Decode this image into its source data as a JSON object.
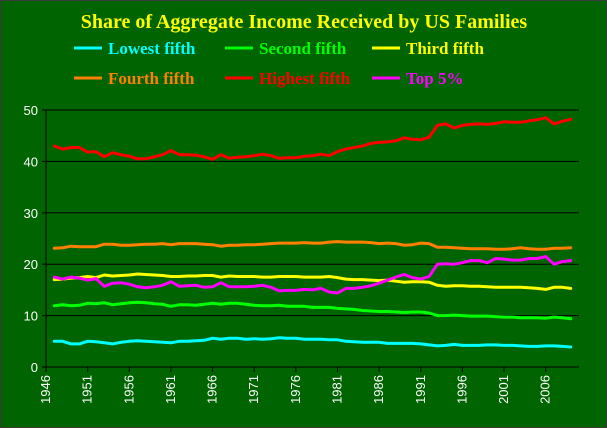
{
  "chart_data": {
    "type": "line",
    "title": "Share of Aggregate Income Received by US Families",
    "xlabel": "",
    "ylabel": "",
    "xlim": [
      1946,
      2010
    ],
    "ylim": [
      0,
      50
    ],
    "x_ticks": [
      "1946",
      "1951",
      "1956",
      "1961",
      "1966",
      "1971",
      "1976",
      "1981",
      "1986",
      "1991",
      "1996",
      "2001",
      "2006"
    ],
    "y_ticks": [
      "0",
      "10",
      "20",
      "30",
      "40",
      "50"
    ],
    "grid": true,
    "legend_position": "top",
    "colors": {
      "background": "#006400",
      "title": "#ffff00",
      "axis": "#000000",
      "grid": "#000000",
      "tick_text": "#ffffff"
    },
    "series": [
      {
        "name": "Lowest fifth",
        "color": "#00ffff",
        "x": [
          1947,
          1948,
          1949,
          1950,
          1951,
          1952,
          1953,
          1954,
          1955,
          1956,
          1957,
          1958,
          1959,
          1960,
          1961,
          1962,
          1963,
          1964,
          1965,
          1966,
          1967,
          1968,
          1969,
          1970,
          1971,
          1972,
          1973,
          1974,
          1975,
          1976,
          1977,
          1978,
          1979,
          1980,
          1981,
          1982,
          1983,
          1984,
          1985,
          1986,
          1987,
          1988,
          1989,
          1990,
          1991,
          1992,
          1993,
          1994,
          1995,
          1996,
          1997,
          1998,
          1999,
          2000,
          2001,
          2002,
          2003,
          2004,
          2005,
          2006,
          2007,
          2008,
          2009
        ],
        "y": [
          5.0,
          5.0,
          4.5,
          4.5,
          5.0,
          4.9,
          4.7,
          4.5,
          4.8,
          5.0,
          5.1,
          5.0,
          4.9,
          4.8,
          4.7,
          5.0,
          5.0,
          5.1,
          5.2,
          5.6,
          5.4,
          5.6,
          5.6,
          5.4,
          5.5,
          5.4,
          5.5,
          5.7,
          5.6,
          5.6,
          5.4,
          5.4,
          5.4,
          5.3,
          5.3,
          5.0,
          4.9,
          4.8,
          4.8,
          4.8,
          4.6,
          4.6,
          4.6,
          4.6,
          4.5,
          4.3,
          4.1,
          4.2,
          4.4,
          4.2,
          4.2,
          4.2,
          4.3,
          4.3,
          4.2,
          4.2,
          4.1,
          4.0,
          4.0,
          4.1,
          4.1,
          4.0,
          3.9
        ]
      },
      {
        "name": "Second fifth",
        "color": "#00ff00",
        "x": [
          1947,
          1948,
          1949,
          1950,
          1951,
          1952,
          1953,
          1954,
          1955,
          1956,
          1957,
          1958,
          1959,
          1960,
          1961,
          1962,
          1963,
          1964,
          1965,
          1966,
          1967,
          1968,
          1969,
          1970,
          1971,
          1972,
          1973,
          1974,
          1975,
          1976,
          1977,
          1978,
          1979,
          1980,
          1981,
          1982,
          1983,
          1984,
          1985,
          1986,
          1987,
          1988,
          1989,
          1990,
          1991,
          1992,
          1993,
          1994,
          1995,
          1996,
          1997,
          1998,
          1999,
          2000,
          2001,
          2002,
          2003,
          2004,
          2005,
          2006,
          2007,
          2008,
          2009
        ],
        "y": [
          11.9,
          12.1,
          11.9,
          12.0,
          12.4,
          12.3,
          12.5,
          12.1,
          12.3,
          12.5,
          12.6,
          12.5,
          12.3,
          12.2,
          11.8,
          12.1,
          12.1,
          12.0,
          12.2,
          12.4,
          12.2,
          12.4,
          12.4,
          12.2,
          12.0,
          11.9,
          11.9,
          12.0,
          11.8,
          11.8,
          11.8,
          11.6,
          11.6,
          11.6,
          11.4,
          11.3,
          11.2,
          11.0,
          10.9,
          10.8,
          10.8,
          10.7,
          10.6,
          10.7,
          10.7,
          10.5,
          10.0,
          10.0,
          10.1,
          10.0,
          9.9,
          9.9,
          9.9,
          9.8,
          9.7,
          9.7,
          9.6,
          9.6,
          9.6,
          9.5,
          9.7,
          9.6,
          9.4
        ]
      },
      {
        "name": "Third fifth",
        "color": "#ffff00",
        "x": [
          1947,
          1948,
          1949,
          1950,
          1951,
          1952,
          1953,
          1954,
          1955,
          1956,
          1957,
          1958,
          1959,
          1960,
          1961,
          1962,
          1963,
          1964,
          1965,
          1966,
          1967,
          1968,
          1969,
          1970,
          1971,
          1972,
          1973,
          1974,
          1975,
          1976,
          1977,
          1978,
          1979,
          1980,
          1981,
          1982,
          1983,
          1984,
          1985,
          1986,
          1987,
          1988,
          1989,
          1990,
          1991,
          1992,
          1993,
          1994,
          1995,
          1996,
          1997,
          1998,
          1999,
          2000,
          2001,
          2002,
          2003,
          2004,
          2005,
          2006,
          2007,
          2008,
          2009
        ],
        "y": [
          17.0,
          17.1,
          17.3,
          17.4,
          17.6,
          17.4,
          17.9,
          17.7,
          17.8,
          17.9,
          18.1,
          18.0,
          17.9,
          17.8,
          17.6,
          17.6,
          17.7,
          17.7,
          17.8,
          17.8,
          17.5,
          17.7,
          17.6,
          17.6,
          17.6,
          17.5,
          17.5,
          17.6,
          17.6,
          17.6,
          17.5,
          17.5,
          17.5,
          17.6,
          17.4,
          17.1,
          17.0,
          17.0,
          16.9,
          16.8,
          16.9,
          16.7,
          16.5,
          16.6,
          16.6,
          16.5,
          15.9,
          15.7,
          15.8,
          15.8,
          15.7,
          15.7,
          15.6,
          15.5,
          15.5,
          15.5,
          15.5,
          15.4,
          15.3,
          15.1,
          15.5,
          15.5,
          15.3
        ]
      },
      {
        "name": "Fourth fifth",
        "color": "#ff8000",
        "x": [
          1947,
          1948,
          1949,
          1950,
          1951,
          1952,
          1953,
          1954,
          1955,
          1956,
          1957,
          1958,
          1959,
          1960,
          1961,
          1962,
          1963,
          1964,
          1965,
          1966,
          1967,
          1968,
          1969,
          1970,
          1971,
          1972,
          1973,
          1974,
          1975,
          1976,
          1977,
          1978,
          1979,
          1980,
          1981,
          1982,
          1983,
          1984,
          1985,
          1986,
          1987,
          1988,
          1989,
          1990,
          1991,
          1992,
          1993,
          1994,
          1995,
          1996,
          1997,
          1998,
          1999,
          2000,
          2001,
          2002,
          2003,
          2004,
          2005,
          2006,
          2007,
          2008,
          2009
        ],
        "y": [
          23.1,
          23.2,
          23.5,
          23.4,
          23.4,
          23.4,
          23.9,
          23.9,
          23.7,
          23.7,
          23.8,
          23.9,
          23.9,
          24.0,
          23.8,
          24.0,
          24.0,
          24.0,
          23.9,
          23.8,
          23.5,
          23.7,
          23.7,
          23.8,
          23.8,
          23.9,
          24.0,
          24.1,
          24.1,
          24.1,
          24.2,
          24.1,
          24.1,
          24.3,
          24.4,
          24.3,
          24.3,
          24.3,
          24.2,
          24.0,
          24.1,
          24.0,
          23.7,
          23.8,
          24.1,
          24.0,
          23.3,
          23.3,
          23.2,
          23.1,
          23.0,
          23.0,
          23.0,
          22.9,
          22.9,
          23.0,
          23.2,
          23.0,
          22.9,
          22.9,
          23.1,
          23.1,
          23.2
        ]
      },
      {
        "name": "Highest fifth",
        "color": "#ff0000",
        "x": [
          1947,
          1948,
          1949,
          1950,
          1951,
          1952,
          1953,
          1954,
          1955,
          1956,
          1957,
          1958,
          1959,
          1960,
          1961,
          1962,
          1963,
          1964,
          1965,
          1966,
          1967,
          1968,
          1969,
          1970,
          1971,
          1972,
          1973,
          1974,
          1975,
          1976,
          1977,
          1978,
          1979,
          1980,
          1981,
          1982,
          1983,
          1984,
          1985,
          1986,
          1987,
          1988,
          1989,
          1990,
          1991,
          1992,
          1993,
          1994,
          1995,
          1996,
          1997,
          1998,
          1999,
          2000,
          2001,
          2002,
          2003,
          2004,
          2005,
          2006,
          2007,
          2008,
          2009
        ],
        "y": [
          43.0,
          42.4,
          42.7,
          42.7,
          41.8,
          41.9,
          40.9,
          41.7,
          41.3,
          41.0,
          40.5,
          40.5,
          40.9,
          41.3,
          42.1,
          41.3,
          41.3,
          41.2,
          40.9,
          40.4,
          41.3,
          40.6,
          40.8,
          40.9,
          41.1,
          41.4,
          41.1,
          40.6,
          40.7,
          40.7,
          41.0,
          41.1,
          41.4,
          41.1,
          41.9,
          42.4,
          42.7,
          43.0,
          43.5,
          43.7,
          43.8,
          44.0,
          44.6,
          44.3,
          44.2,
          44.7,
          47.0,
          47.3,
          46.5,
          47.0,
          47.2,
          47.3,
          47.2,
          47.4,
          47.7,
          47.6,
          47.6,
          47.9,
          48.1,
          48.5,
          47.3,
          47.8,
          48.2
        ]
      },
      {
        "name": "Top 5%",
        "color": "#ff00ff",
        "x": [
          1947,
          1948,
          1949,
          1950,
          1951,
          1952,
          1953,
          1954,
          1955,
          1956,
          1957,
          1958,
          1959,
          1960,
          1961,
          1962,
          1963,
          1964,
          1965,
          1966,
          1967,
          1968,
          1969,
          1970,
          1971,
          1972,
          1973,
          1974,
          1975,
          1976,
          1977,
          1978,
          1979,
          1980,
          1981,
          1982,
          1983,
          1984,
          1985,
          1986,
          1987,
          1988,
          1989,
          1990,
          1991,
          1992,
          1993,
          1994,
          1995,
          1996,
          1997,
          1998,
          1999,
          2000,
          2001,
          2002,
          2003,
          2004,
          2005,
          2006,
          2007,
          2008,
          2009
        ],
        "y": [
          17.5,
          17.1,
          17.5,
          17.3,
          16.9,
          17.2,
          15.7,
          16.3,
          16.4,
          16.1,
          15.6,
          15.4,
          15.6,
          15.9,
          16.6,
          15.7,
          15.8,
          15.9,
          15.5,
          15.6,
          16.4,
          15.6,
          15.6,
          15.6,
          15.7,
          15.9,
          15.5,
          14.8,
          14.9,
          14.9,
          15.1,
          15.0,
          15.3,
          14.6,
          14.4,
          15.3,
          15.3,
          15.5,
          15.8,
          16.3,
          16.9,
          17.5,
          18.0,
          17.4,
          17.1,
          17.6,
          20.0,
          20.1,
          20.0,
          20.3,
          20.7,
          20.7,
          20.3,
          21.1,
          21.0,
          20.8,
          20.8,
          21.1,
          21.1,
          21.5,
          20.0,
          20.5,
          20.7
        ]
      }
    ]
  }
}
